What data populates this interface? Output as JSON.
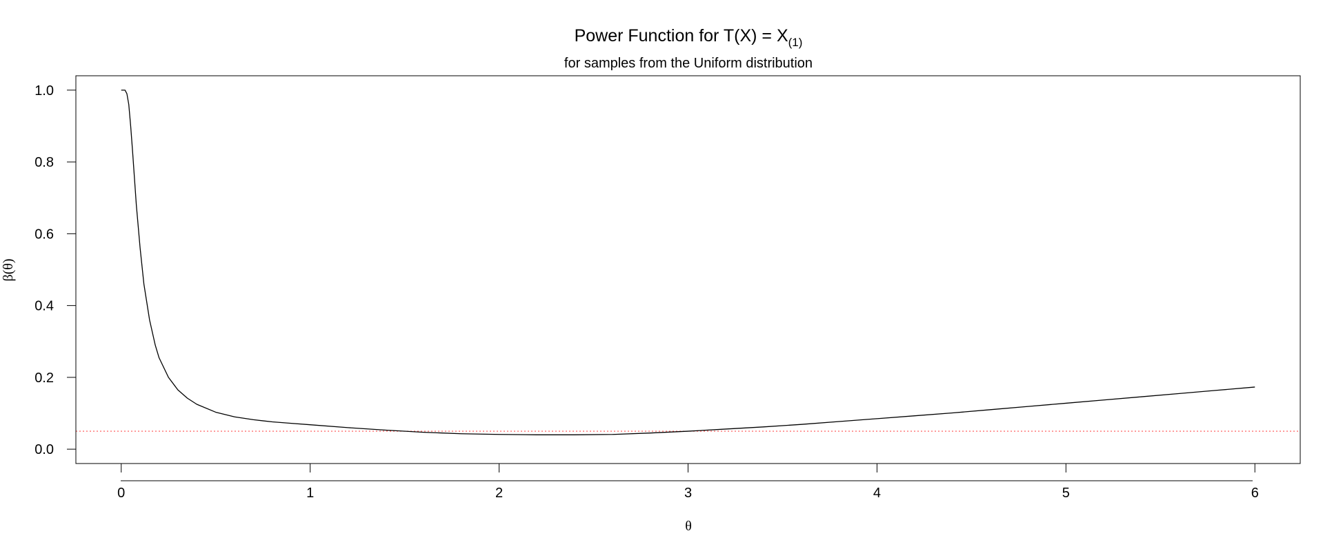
{
  "chart_data": {
    "type": "line",
    "title": {
      "main": "Power Function for T(X) = X",
      "subscript": "(1)"
    },
    "subtitle": "for samples from the Uniform distribution",
    "xlabel": "θ",
    "ylabel": "β(θ)",
    "xlim": [
      -0.24,
      6.24
    ],
    "ylim": [
      -0.04,
      1.04
    ],
    "x_ticks": [
      0,
      1,
      2,
      3,
      4,
      5,
      6
    ],
    "x_tick_labels": [
      "0",
      "1",
      "2",
      "3",
      "4",
      "5",
      "6"
    ],
    "y_ticks": [
      0.0,
      0.2,
      0.4,
      0.6,
      0.8,
      1.0
    ],
    "y_tick_labels": [
      "0.0",
      "0.2",
      "0.4",
      "0.6",
      "0.8",
      "1.0"
    ],
    "grid": false,
    "series": [
      {
        "color": "#000000",
        "style": "solid",
        "x": [
          0.0,
          0.02,
          0.03,
          0.04,
          0.05,
          0.06,
          0.08,
          0.1,
          0.12,
          0.15,
          0.18,
          0.2,
          0.25,
          0.3,
          0.35,
          0.4,
          0.5,
          0.6,
          0.7,
          0.8,
          0.9,
          1.0,
          1.2,
          1.4,
          1.6,
          1.8,
          2.0,
          2.2,
          2.4,
          2.6,
          2.8,
          3.0,
          3.2,
          3.4,
          3.6,
          3.8,
          4.0,
          4.2,
          4.4,
          4.6,
          4.8,
          5.0,
          5.2,
          5.4,
          5.6,
          5.8,
          6.0
        ],
        "y": [
          1.0,
          1.0,
          0.99,
          0.96,
          0.9,
          0.83,
          0.68,
          0.56,
          0.46,
          0.36,
          0.29,
          0.255,
          0.2,
          0.165,
          0.142,
          0.125,
          0.103,
          0.09,
          0.082,
          0.076,
          0.072,
          0.068,
          0.06,
          0.053,
          0.047,
          0.043,
          0.041,
          0.04,
          0.04,
          0.041,
          0.045,
          0.05,
          0.056,
          0.062,
          0.069,
          0.077,
          0.085,
          0.093,
          0.101,
          0.11,
          0.119,
          0.128,
          0.137,
          0.146,
          0.155,
          0.164,
          0.173
        ]
      }
    ],
    "reference_lines": [
      {
        "orientation": "horizontal",
        "y": 0.05,
        "color": "#ff4d4d",
        "style": "dotted"
      }
    ]
  }
}
